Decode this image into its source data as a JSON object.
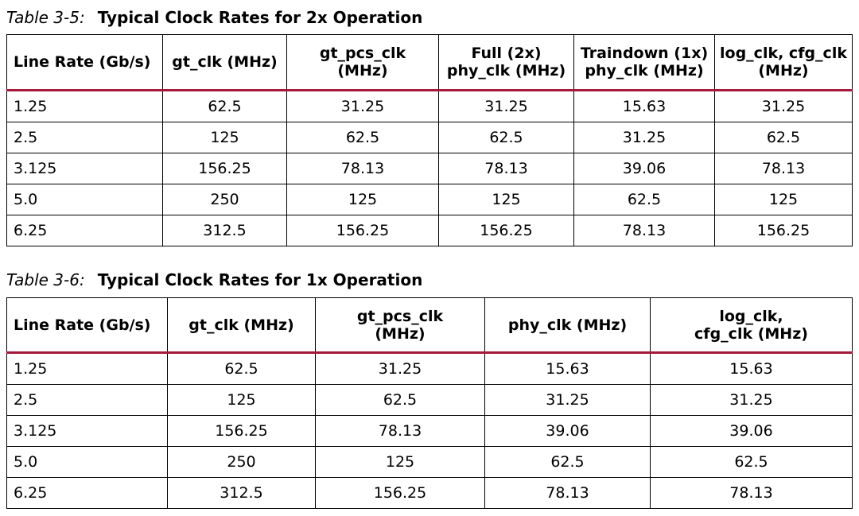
{
  "tables": [
    {
      "number": "Table 3-5:",
      "title": "Typical Clock Rates for 2x Operation",
      "headers": [
        [
          "Line Rate (Gb/s)"
        ],
        [
          "gt_clk (MHz)"
        ],
        [
          "gt_pcs_clk",
          "(MHz)"
        ],
        [
          "Full (2x)",
          "phy_clk (MHz)"
        ],
        [
          "Traindown (1x)",
          "phy_clk (MHz)"
        ],
        [
          "log_clk, cfg_clk",
          "(MHz)"
        ]
      ],
      "rows": [
        [
          "1.25",
          "62.5",
          "31.25",
          "31.25",
          "15.63",
          "31.25"
        ],
        [
          "2.5",
          "125",
          "62.5",
          "62.5",
          "31.25",
          "62.5"
        ],
        [
          "3.125",
          "156.25",
          "78.13",
          "78.13",
          "39.06",
          "78.13"
        ],
        [
          "5.0",
          "250",
          "125",
          "125",
          "62.5",
          "125"
        ],
        [
          "6.25",
          "312.5",
          "156.25",
          "156.25",
          "78.13",
          "156.25"
        ]
      ]
    },
    {
      "number": "Table 3-6:",
      "title": "Typical Clock Rates for 1x Operation",
      "headers": [
        [
          "Line Rate (Gb/s)"
        ],
        [
          "gt_clk (MHz)"
        ],
        [
          "gt_pcs_clk",
          "(MHz)"
        ],
        [
          "phy_clk (MHz)"
        ],
        [
          "log_clk,",
          "cfg_clk (MHz)"
        ]
      ],
      "rows": [
        [
          "1.25",
          "62.5",
          "31.25",
          "15.63",
          "15.63"
        ],
        [
          "2.5",
          "125",
          "62.5",
          "31.25",
          "31.25"
        ],
        [
          "3.125",
          "156.25",
          "78.13",
          "39.06",
          "39.06"
        ],
        [
          "5.0",
          "250",
          "125",
          "62.5",
          "62.5"
        ],
        [
          "6.25",
          "312.5",
          "156.25",
          "78.13",
          "78.13"
        ]
      ]
    }
  ]
}
